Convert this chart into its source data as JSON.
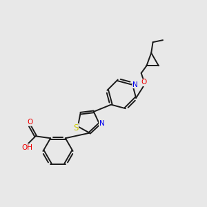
{
  "background_color": "#e8e8e8",
  "bond_color": "#1a1a1a",
  "atom_colors": {
    "N": "#0000ee",
    "O": "#ee0000",
    "S": "#cccc00",
    "C": "#1a1a1a",
    "H": "#5a9090"
  },
  "figsize": [
    3.0,
    3.0
  ],
  "dpi": 100
}
